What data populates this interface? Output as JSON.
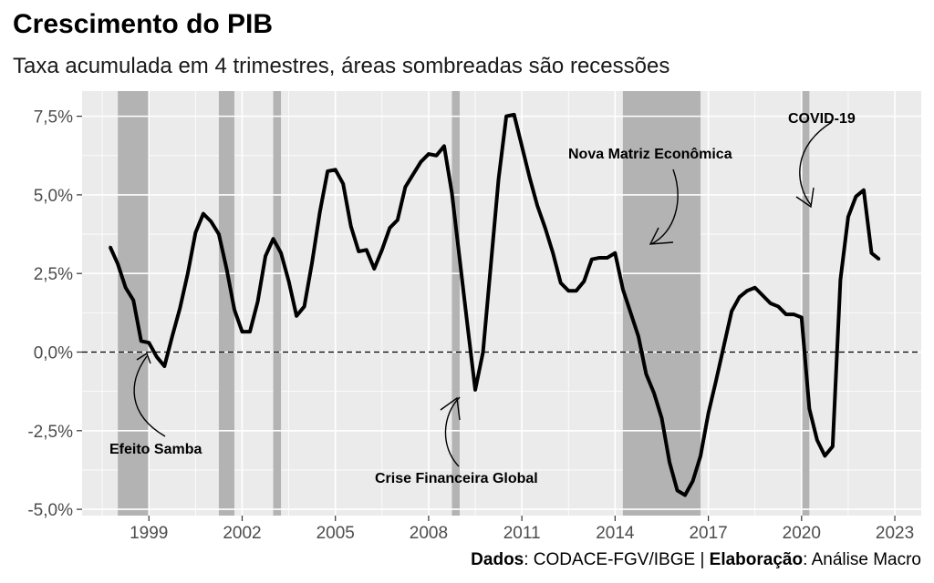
{
  "chart_data": {
    "type": "line",
    "title": "Crescimento do PIB",
    "subtitle": "Taxa acumulada em 4 trimestres, áreas sombreadas são recessões",
    "caption": {
      "dados_label": "Dados",
      "dados_value": ": CODACE-FGV/IBGE | ",
      "elab_label": "Elaboração",
      "elab_value": ": Análise Macro"
    },
    "xlim": [
      1996.85,
      2023.85
    ],
    "ylim": [
      -5.2,
      8.3
    ],
    "x_ticks": [
      {
        "value": 1999,
        "label": "1999"
      },
      {
        "value": 2002,
        "label": "2002"
      },
      {
        "value": 2005,
        "label": "2005"
      },
      {
        "value": 2008,
        "label": "2008"
      },
      {
        "value": 2011,
        "label": "2011"
      },
      {
        "value": 2014,
        "label": "2014"
      },
      {
        "value": 2017,
        "label": "2017"
      },
      {
        "value": 2020,
        "label": "2020"
      },
      {
        "value": 2023,
        "label": "2023"
      }
    ],
    "y_ticks": [
      {
        "value": 7.5,
        "label": "7,5%"
      },
      {
        "value": 5.0,
        "label": "5,0%"
      },
      {
        "value": 2.5,
        "label": "2,5%"
      },
      {
        "value": 0.0,
        "label": "0,0%"
      },
      {
        "value": -2.5,
        "label": "-2,5%"
      },
      {
        "value": -5.0,
        "label": "-5,0%"
      }
    ],
    "grid": true,
    "reference_line": {
      "y": 0,
      "style": "dashed"
    },
    "recessions": [
      [
        1998.0,
        1999.0
      ],
      [
        2001.25,
        2001.75
      ],
      [
        2003.0,
        2003.25
      ],
      [
        2008.75,
        2009.0
      ],
      [
        2014.25,
        2016.75
      ],
      [
        2020.0,
        2020.25
      ]
    ],
    "series": [
      {
        "x": [
          1997.75,
          1998.0,
          1998.25,
          1998.5,
          1998.75,
          1999.0,
          1999.25,
          1999.5,
          1999.75,
          2000.0,
          2000.25,
          2000.5,
          2000.75,
          2001.0,
          2001.25,
          2001.5,
          2001.75,
          2002.0,
          2002.25,
          2002.5,
          2002.75,
          2003.0,
          2003.25,
          2003.5,
          2003.75,
          2004.0,
          2004.25,
          2004.5,
          2004.75,
          2005.0,
          2005.25,
          2005.5,
          2005.75,
          2006.0,
          2006.25,
          2006.5,
          2006.75,
          2007.0,
          2007.25,
          2007.5,
          2007.75,
          2008.0,
          2008.25,
          2008.5,
          2008.75,
          2009.0,
          2009.25,
          2009.5,
          2009.75,
          2010.0,
          2010.25,
          2010.5,
          2010.75,
          2011.0,
          2011.25,
          2011.5,
          2011.75,
          2012.0,
          2012.25,
          2012.5,
          2012.75,
          2013.0,
          2013.25,
          2013.5,
          2013.75,
          2014.0,
          2014.25,
          2014.5,
          2014.75,
          2015.0,
          2015.25,
          2015.5,
          2015.75,
          2016.0,
          2016.25,
          2016.5,
          2016.75,
          2017.0,
          2017.25,
          2017.5,
          2017.75,
          2018.0,
          2018.25,
          2018.5,
          2018.75,
          2019.0,
          2019.25,
          2019.5,
          2019.75,
          2020.0,
          2020.25,
          2020.5,
          2020.75,
          2021.0,
          2021.25,
          2021.5,
          2021.75,
          2022.0,
          2022.25,
          2022.5
        ],
        "values": [
          3.35,
          2.8,
          2.05,
          1.65,
          0.35,
          0.3,
          -0.15,
          -0.45,
          0.5,
          1.4,
          2.5,
          3.8,
          4.4,
          4.15,
          3.75,
          2.65,
          1.35,
          0.65,
          0.65,
          1.6,
          3.05,
          3.6,
          3.15,
          2.25,
          1.15,
          1.45,
          2.85,
          4.45,
          5.75,
          5.8,
          5.35,
          4.0,
          3.2,
          3.25,
          2.65,
          3.25,
          3.95,
          4.2,
          5.25,
          5.65,
          6.05,
          6.3,
          6.25,
          6.55,
          5.05,
          2.95,
          0.85,
          -1.2,
          0.0,
          2.75,
          5.5,
          7.5,
          7.55,
          6.55,
          5.55,
          4.65,
          3.95,
          3.15,
          2.2,
          1.95,
          1.95,
          2.25,
          2.95,
          3.0,
          3.0,
          3.15,
          2.0,
          1.25,
          0.5,
          -0.7,
          -1.3,
          -2.1,
          -3.5,
          -4.4,
          -4.55,
          -4.1,
          -3.3,
          -1.95,
          -0.9,
          0.2,
          1.3,
          1.75,
          1.95,
          2.05,
          1.8,
          1.55,
          1.45,
          1.2,
          1.2,
          1.1,
          -1.8,
          -2.8,
          -3.3,
          -3.0,
          2.3,
          4.3,
          4.95,
          5.15,
          3.15,
          2.95
        ]
      }
    ],
    "annotations": [
      {
        "label": "Efeito Samba",
        "x": 1998.2,
        "y": -3.35
      },
      {
        "label": "Crise Financeira Global",
        "x": 2009.3,
        "y": -4.2
      },
      {
        "label": "Nova Matriz Econômica",
        "x": 2016.2,
        "y": 6.15
      },
      {
        "label": "COVID-19",
        "x": 2021.5,
        "y": 7.3
      }
    ],
    "colors": {
      "panel": "#ebebeb",
      "grid": "#ffffff",
      "recession": "#b3b3b3",
      "line": "#000000",
      "tick_text": "#4d4d4d"
    }
  }
}
